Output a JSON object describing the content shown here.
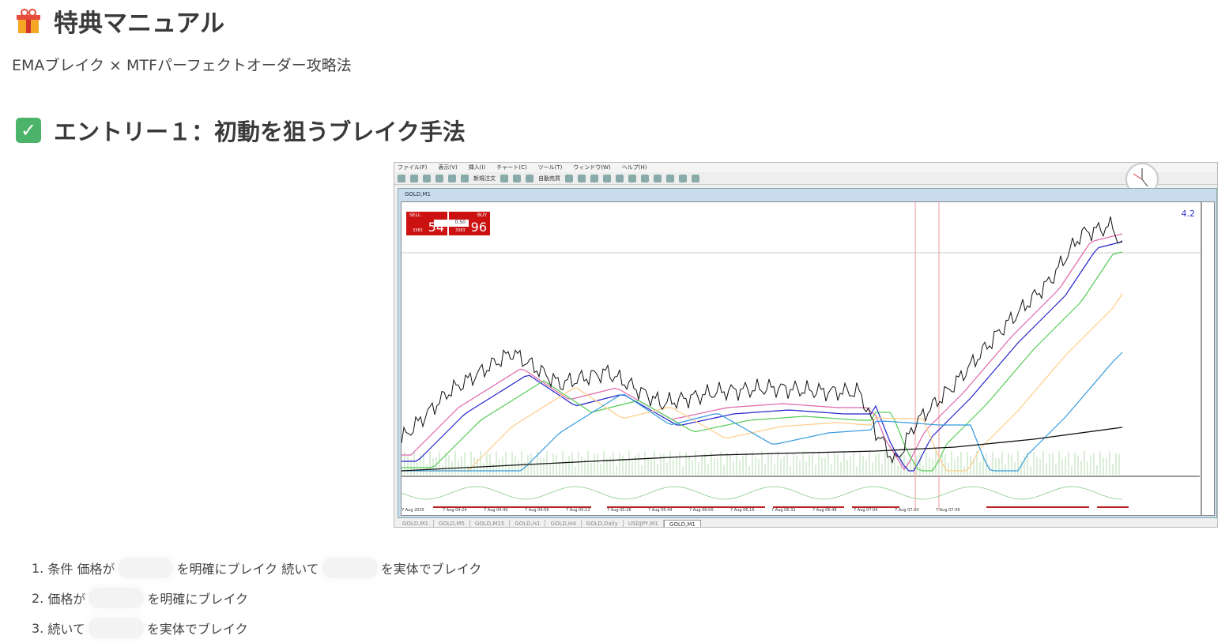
{
  "header": {
    "title": "特典マニュアル",
    "subtitle": "EMAブレイク × MTFパーフェクトオーダー攻略法",
    "icon": "gift-icon"
  },
  "section": {
    "title": "エントリー１：初動を狙うブレイク手法",
    "icon": "check-mark-icon"
  },
  "screenshot": {
    "menu": [
      "ファイル(F)",
      "表示(V)",
      "挿入(I)",
      "チャート(C)",
      "ツール(T)",
      "ウィンドウ(W)",
      "ヘルプ(H)"
    ],
    "toolbar": {
      "new_order": "新規注文",
      "auto_trade": "自動売買"
    },
    "window_title": "GOLD,M1",
    "trade_panel": {
      "sell": "SELL",
      "buy": "BUY",
      "lot": "0.50",
      "sell_prefix": "3383",
      "sell_price": "54",
      "buy_prefix": "3383",
      "buy_price": "96"
    },
    "corner_value": "4.2",
    "time_labels": [
      "7 Aug 2025",
      "7 Aug 04:24",
      "7 Aug 04:40",
      "7 Aug 04:56",
      "7 Aug 05:12",
      "7 Aug 05:28",
      "7 Aug 05:44",
      "7 Aug 06:00",
      "7 Aug 06:16",
      "7 Aug 06:32",
      "7 Aug 06:48",
      "7 Aug 07:04",
      "7 Aug 07:20",
      "7 Aug 07:36"
    ],
    "tabs": [
      "GOLD,M1",
      "GOLD,M5",
      "GOLD,M15",
      "GOLD,H1",
      "GOLD,H4",
      "GOLD,Daily",
      "USDJPY,M1",
      "GOLD,M1"
    ]
  },
  "steps": [
    {
      "num": "1.",
      "parts": [
        "条件 価格が",
        "を明確にブレイク 続いて",
        "を実体でブレイク"
      ]
    },
    {
      "num": "2.",
      "parts": [
        "価格が",
        "を明確にブレイク"
      ]
    },
    {
      "num": "3.",
      "parts": [
        "続いて",
        "を実体でブレイク"
      ]
    }
  ]
}
